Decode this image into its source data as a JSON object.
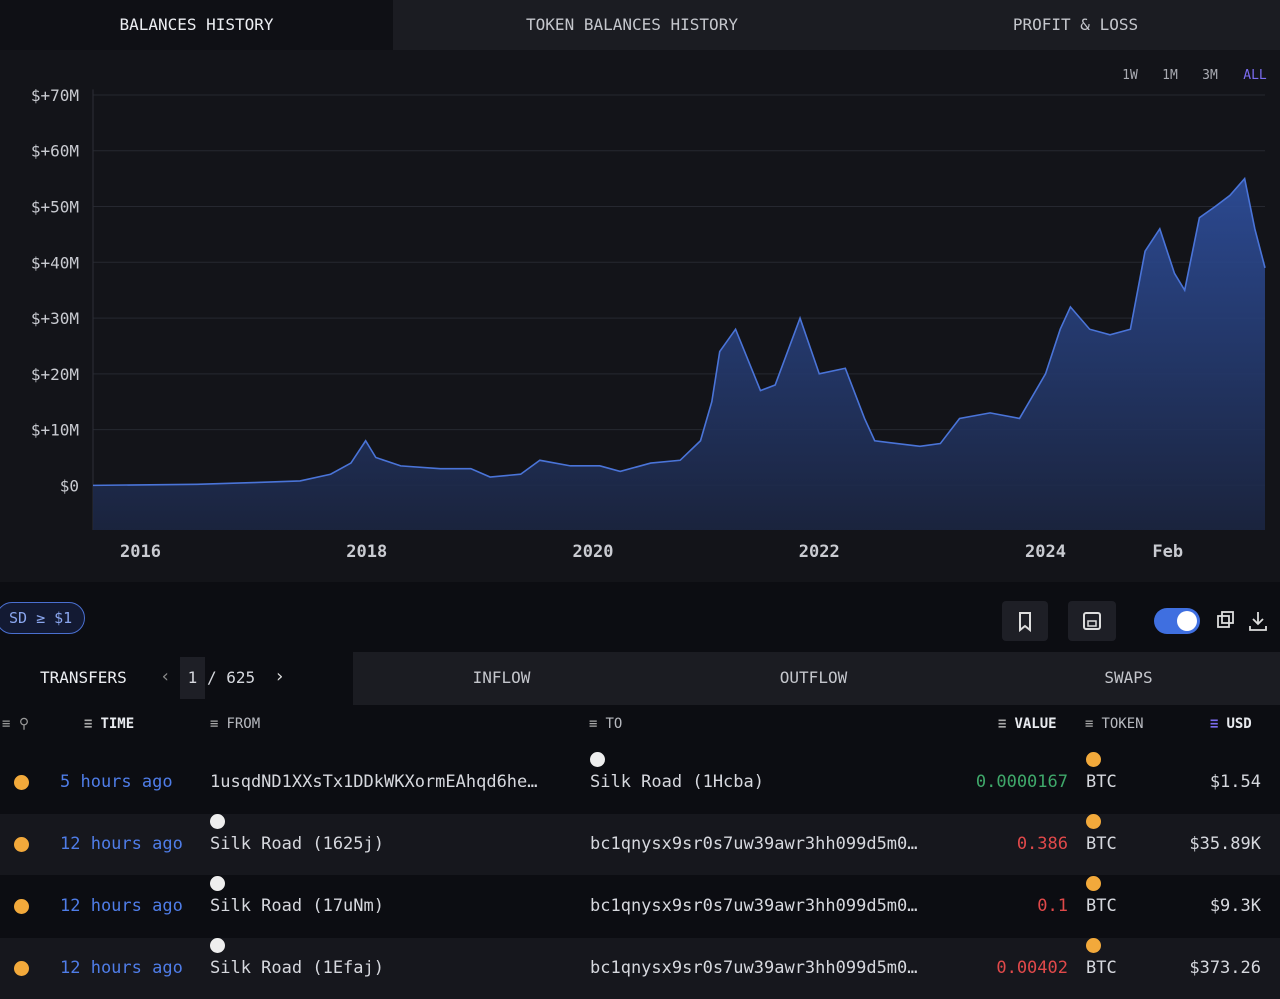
{
  "tabs": [
    "BALANCES HISTORY",
    "TOKEN BALANCES HISTORY",
    "PROFIT & LOSS"
  ],
  "chart_data": {
    "type": "area",
    "color": "#4a74d8",
    "grid": true,
    "ranges": [
      "1W",
      "1M",
      "3M",
      "ALL"
    ],
    "active_range": 3,
    "x": [
      2015.58,
      2016.5,
      2017.0,
      2017.41,
      2017.68,
      2017.86,
      2017.99,
      2018.08,
      2018.3,
      2018.65,
      2018.92,
      2019.09,
      2019.36,
      2019.53,
      2019.8,
      2020.06,
      2020.24,
      2020.51,
      2020.77,
      2020.95,
      2021.05,
      2021.12,
      2021.26,
      2021.48,
      2021.61,
      2021.83,
      2022.0,
      2022.23,
      2022.4,
      2022.49,
      2022.89,
      2023.07,
      2023.24,
      2023.51,
      2023.77,
      2024.0,
      2024.13,
      2024.22,
      2024.39,
      2024.57,
      2024.75,
      2024.88,
      2025.01,
      2025.14,
      2025.23,
      2025.36,
      2025.5,
      2025.63,
      2025.76,
      2025.85,
      2025.94
    ],
    "values": [
      0,
      0.2,
      0.5,
      0.8,
      2,
      4,
      8,
      5,
      3.5,
      3,
      3,
      1.5,
      2,
      4.5,
      3.5,
      3.5,
      2.5,
      4,
      4.5,
      8,
      15,
      24,
      28,
      17,
      18,
      30,
      20,
      21,
      12,
      8,
      7,
      7.5,
      12,
      13,
      12,
      20,
      28,
      32,
      28,
      27,
      28,
      42,
      46,
      38,
      35,
      48,
      50,
      52,
      55,
      46,
      39
    ],
    "xlim": [
      2015.58,
      2025.94
    ],
    "xticks": [
      2016,
      2018,
      2020,
      2022,
      2024,
      {
        "value": 2025.08,
        "label": "Feb"
      }
    ],
    "ylim": [
      -8,
      71
    ],
    "yticks": [
      {
        "value": 0,
        "label": "$0"
      },
      {
        "value": 10,
        "label": "$+10M"
      },
      {
        "value": 20,
        "label": "$+20M"
      },
      {
        "value": 30,
        "label": "$+30M"
      },
      {
        "value": 40,
        "label": "$+40M"
      },
      {
        "value": 50,
        "label": "$+50M"
      },
      {
        "value": 60,
        "label": "$+60M"
      },
      {
        "value": 70,
        "label": "$+70M"
      }
    ]
  },
  "filter_chip": "SD ≥ $1",
  "transfers": {
    "tabs": [
      "TRANSFERS",
      "INFLOW",
      "OUTFLOW",
      "SWAPS"
    ],
    "page": "1",
    "pages": "/ 625",
    "headers": [
      "TIME",
      "FROM",
      "TO",
      "VALUE",
      "TOKEN",
      "USD"
    ],
    "rows": [
      [
        "5 hours ago",
        "1usqdND1XXsTx1DDkWKXormEAhqd6he…",
        "Silk Road (1Hcba)",
        "0.0000167",
        "BTC",
        "$1.54"
      ],
      [
        "12 hours ago",
        "Silk Road (1625j)",
        "bc1qnysx9sr0s7uw39awr3hh099d5m0…",
        "0.386",
        "BTC",
        "$35.89K"
      ],
      [
        "12 hours ago",
        "Silk Road (17uNm)",
        "bc1qnysx9sr0s7uw39awr3hh099d5m0…",
        "0.1",
        "BTC",
        "$9.3K"
      ],
      [
        "12 hours ago",
        "Silk Road (1Efaj)",
        "bc1qnysx9sr0s7uw39awr3hh099d5m0…",
        "0.00402",
        "BTC",
        "$373.26"
      ]
    ],
    "value_colors": [
      "#3fa86a",
      "#e0494a",
      "#e0494a",
      "#e0494a"
    ]
  }
}
